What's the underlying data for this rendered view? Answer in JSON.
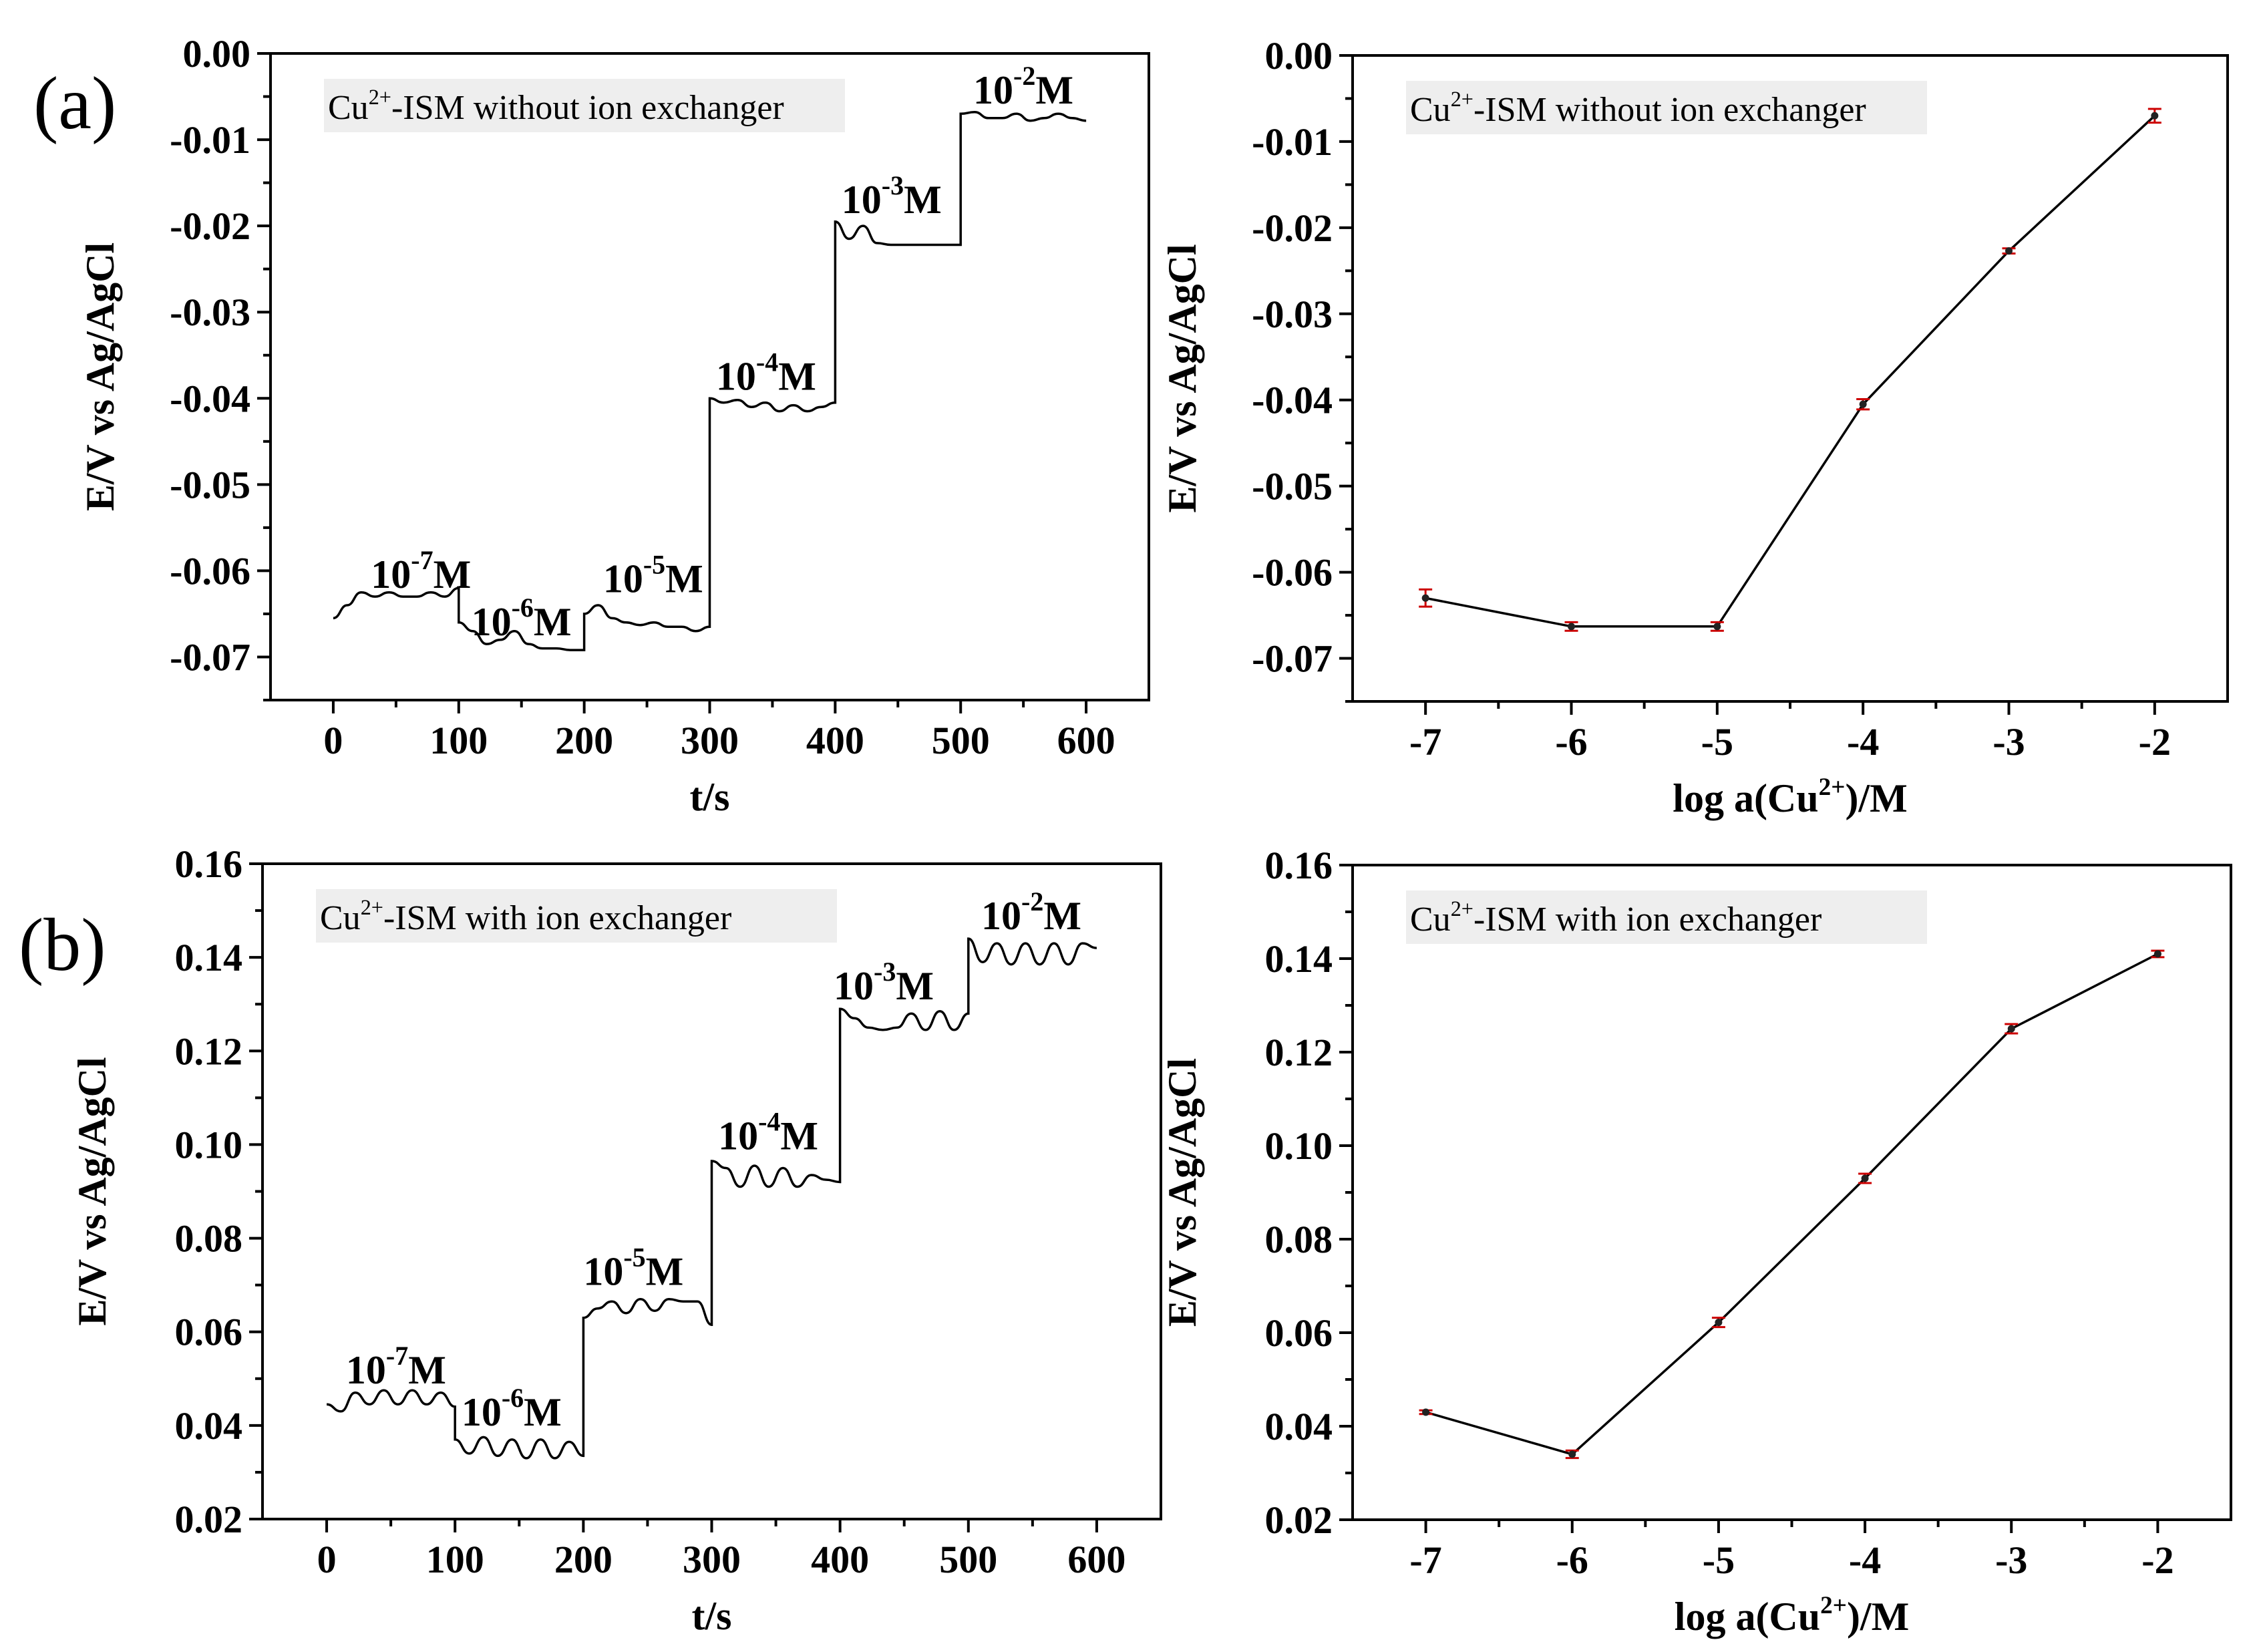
{
  "figure": {
    "panel_labels": {
      "a": "(a)",
      "b": "(b)"
    }
  },
  "chart_data": [
    {
      "id": "a-time",
      "type": "line",
      "legend": "Cu²⁺-ISM without ion exchanger",
      "xlabel": "t/s",
      "ylabel": "E/V vs Ag/AgCl",
      "xlim": [
        -50,
        650
      ],
      "ylim": [
        -0.075,
        0.0
      ],
      "xticks": [
        0,
        100,
        200,
        300,
        400,
        500,
        600
      ],
      "xtick_labels": [
        "0",
        "100",
        "200",
        "300",
        "400",
        "500",
        "600"
      ],
      "yticks": [
        0.0,
        -0.01,
        -0.02,
        -0.03,
        -0.04,
        -0.05,
        -0.06,
        -0.07
      ],
      "ytick_labels": [
        "0.00",
        "-0.01",
        "-0.02",
        "-0.03",
        "-0.04",
        "-0.05",
        "-0.06",
        "-0.07"
      ],
      "segments": [
        {
          "t0": 0,
          "t1": 100,
          "values": [
            -0.0655,
            -0.064,
            -0.0625,
            -0.063,
            -0.0625,
            -0.063,
            -0.063,
            -0.0625,
            -0.063,
            -0.062
          ]
        },
        {
          "t0": 100,
          "t1": 200,
          "values": [
            -0.066,
            -0.067,
            -0.0685,
            -0.068,
            -0.067,
            -0.0685,
            -0.069,
            -0.069,
            -0.0692,
            -0.0692
          ]
        },
        {
          "t0": 200,
          "t1": 300,
          "values": [
            -0.065,
            -0.064,
            -0.0655,
            -0.066,
            -0.0663,
            -0.066,
            -0.0665,
            -0.0665,
            -0.067,
            -0.0665
          ]
        },
        {
          "t0": 300,
          "t1": 400,
          "values": [
            -0.04,
            -0.0405,
            -0.0402,
            -0.041,
            -0.0405,
            -0.0415,
            -0.0408,
            -0.0415,
            -0.041,
            -0.0405
          ]
        },
        {
          "t0": 400,
          "t1": 500,
          "values": [
            -0.0195,
            -0.0215,
            -0.02,
            -0.022,
            -0.0222,
            -0.0222,
            -0.0222,
            -0.0222,
            -0.0222,
            -0.0222
          ]
        },
        {
          "t0": 500,
          "t1": 600,
          "values": [
            -0.007,
            -0.0068,
            -0.0075,
            -0.0075,
            -0.007,
            -0.0078,
            -0.0075,
            -0.007,
            -0.0075,
            -0.0078
          ]
        }
      ],
      "annotations": [
        {
          "base": "10",
          "exp": "-7",
          "unit": "M",
          "x": 30,
          "y": -0.062
        },
        {
          "base": "10",
          "exp": "-6",
          "unit": "M",
          "x": 110,
          "y": -0.0675
        },
        {
          "base": "10",
          "exp": "-5",
          "unit": "M",
          "x": 215,
          "y": -0.0625
        },
        {
          "base": "10",
          "exp": "-4",
          "unit": "M",
          "x": 305,
          "y": -0.039
        },
        {
          "base": "10",
          "exp": "-3",
          "unit": "M",
          "x": 405,
          "y": -0.0185
        },
        {
          "base": "10",
          "exp": "-2",
          "unit": "M",
          "x": 510,
          "y": -0.0058
        }
      ]
    },
    {
      "id": "a-cal",
      "type": "line",
      "legend": "Cu²⁺-ISM without ion exchanger",
      "xlabel": "log a(Cu²⁺)/M",
      "ylabel": "E/V vs Ag/AgCl",
      "xlim": [
        -7.5,
        -1.5
      ],
      "ylim": [
        -0.075,
        0.0
      ],
      "xticks": [
        -7,
        -6,
        -5,
        -4,
        -3,
        -2
      ],
      "xtick_labels": [
        "-7",
        "-6",
        "-5",
        "-4",
        "-3",
        "-2"
      ],
      "yticks": [
        0.0,
        -0.01,
        -0.02,
        -0.03,
        -0.04,
        -0.05,
        -0.06,
        -0.07
      ],
      "ytick_labels": [
        "0.00",
        "-0.01",
        "-0.02",
        "-0.03",
        "-0.04",
        "-0.05",
        "-0.06",
        "-0.07"
      ],
      "x": [
        -7,
        -6,
        -5,
        -4,
        -3,
        -2
      ],
      "y": [
        -0.063,
        -0.0663,
        -0.0663,
        -0.0405,
        -0.0227,
        -0.007
      ],
      "err": [
        0.001,
        0.0005,
        0.0005,
        0.0006,
        0.0003,
        0.0008
      ]
    },
    {
      "id": "b-time",
      "type": "line",
      "legend": "Cu²⁺-ISM with ion exchanger",
      "xlabel": "t/s",
      "ylabel": "E/V vs Ag/AgCl",
      "xlim": [
        -50,
        650
      ],
      "ylim": [
        0.02,
        0.16
      ],
      "xticks": [
        0,
        100,
        200,
        300,
        400,
        500,
        600
      ],
      "xtick_labels": [
        "0",
        "100",
        "200",
        "300",
        "400",
        "500",
        "600"
      ],
      "yticks": [
        0.02,
        0.04,
        0.06,
        0.08,
        0.1,
        0.12,
        0.14,
        0.16
      ],
      "ytick_labels": [
        "0.02",
        "0.04",
        "0.06",
        "0.08",
        "0.10",
        "0.12",
        "0.14",
        "0.16"
      ],
      "segments": [
        {
          "t0": 0,
          "t1": 100,
          "values": [
            0.0445,
            0.043,
            0.047,
            0.0445,
            0.0475,
            0.0445,
            0.0475,
            0.0445,
            0.047,
            0.044
          ]
        },
        {
          "t0": 100,
          "t1": 200,
          "values": [
            0.037,
            0.034,
            0.0375,
            0.0335,
            0.037,
            0.033,
            0.037,
            0.033,
            0.0365,
            0.0335
          ]
        },
        {
          "t0": 200,
          "t1": 300,
          "values": [
            0.063,
            0.065,
            0.0665,
            0.064,
            0.067,
            0.0645,
            0.067,
            0.0665,
            0.0665,
            0.0615
          ]
        },
        {
          "t0": 300,
          "t1": 400,
          "values": [
            0.0965,
            0.095,
            0.091,
            0.0955,
            0.091,
            0.095,
            0.091,
            0.0935,
            0.0925,
            0.092
          ]
        },
        {
          "t0": 400,
          "t1": 500,
          "values": [
            0.129,
            0.127,
            0.125,
            0.1245,
            0.125,
            0.128,
            0.1245,
            0.1285,
            0.1245,
            0.128
          ]
        },
        {
          "t0": 500,
          "t1": 600,
          "values": [
            0.144,
            0.139,
            0.143,
            0.1385,
            0.143,
            0.1385,
            0.143,
            0.1385,
            0.143,
            0.142
          ]
        }
      ],
      "annotations": [
        {
          "base": "10",
          "exp": "-7",
          "unit": "M",
          "x": 15,
          "y": 0.049
        },
        {
          "base": "10",
          "exp": "-6",
          "unit": "M",
          "x": 105,
          "y": 0.04
        },
        {
          "base": "10",
          "exp": "-5",
          "unit": "M",
          "x": 200,
          "y": 0.07
        },
        {
          "base": "10",
          "exp": "-4",
          "unit": "M",
          "x": 305,
          "y": 0.099
        },
        {
          "base": "10",
          "exp": "-3",
          "unit": "M",
          "x": 395,
          "y": 0.131
        },
        {
          "base": "10",
          "exp": "-2",
          "unit": "M",
          "x": 510,
          "y": 0.146
        }
      ]
    },
    {
      "id": "b-cal",
      "type": "line",
      "legend": "Cu²⁺-ISM with ion exchanger",
      "xlabel": "log a(Cu²⁺)/M",
      "ylabel": "E/V vs Ag/AgCl",
      "xlim": [
        -7.5,
        -1.5
      ],
      "ylim": [
        0.02,
        0.16
      ],
      "xticks": [
        -7,
        -6,
        -5,
        -4,
        -3,
        -2
      ],
      "xtick_labels": [
        "-7",
        "-6",
        "-5",
        "-4",
        "-3",
        "-2"
      ],
      "yticks": [
        0.02,
        0.04,
        0.06,
        0.08,
        0.1,
        0.12,
        0.14,
        0.16
      ],
      "ytick_labels": [
        "0.02",
        "0.04",
        "0.06",
        "0.08",
        "0.10",
        "0.12",
        "0.14",
        "0.16"
      ],
      "x": [
        -7,
        -6,
        -5,
        -4,
        -3,
        -2
      ],
      "y": [
        0.043,
        0.034,
        0.0622,
        0.093,
        0.125,
        0.141
      ],
      "err": [
        0.0004,
        0.0008,
        0.001,
        0.001,
        0.001,
        0.0007
      ]
    }
  ]
}
